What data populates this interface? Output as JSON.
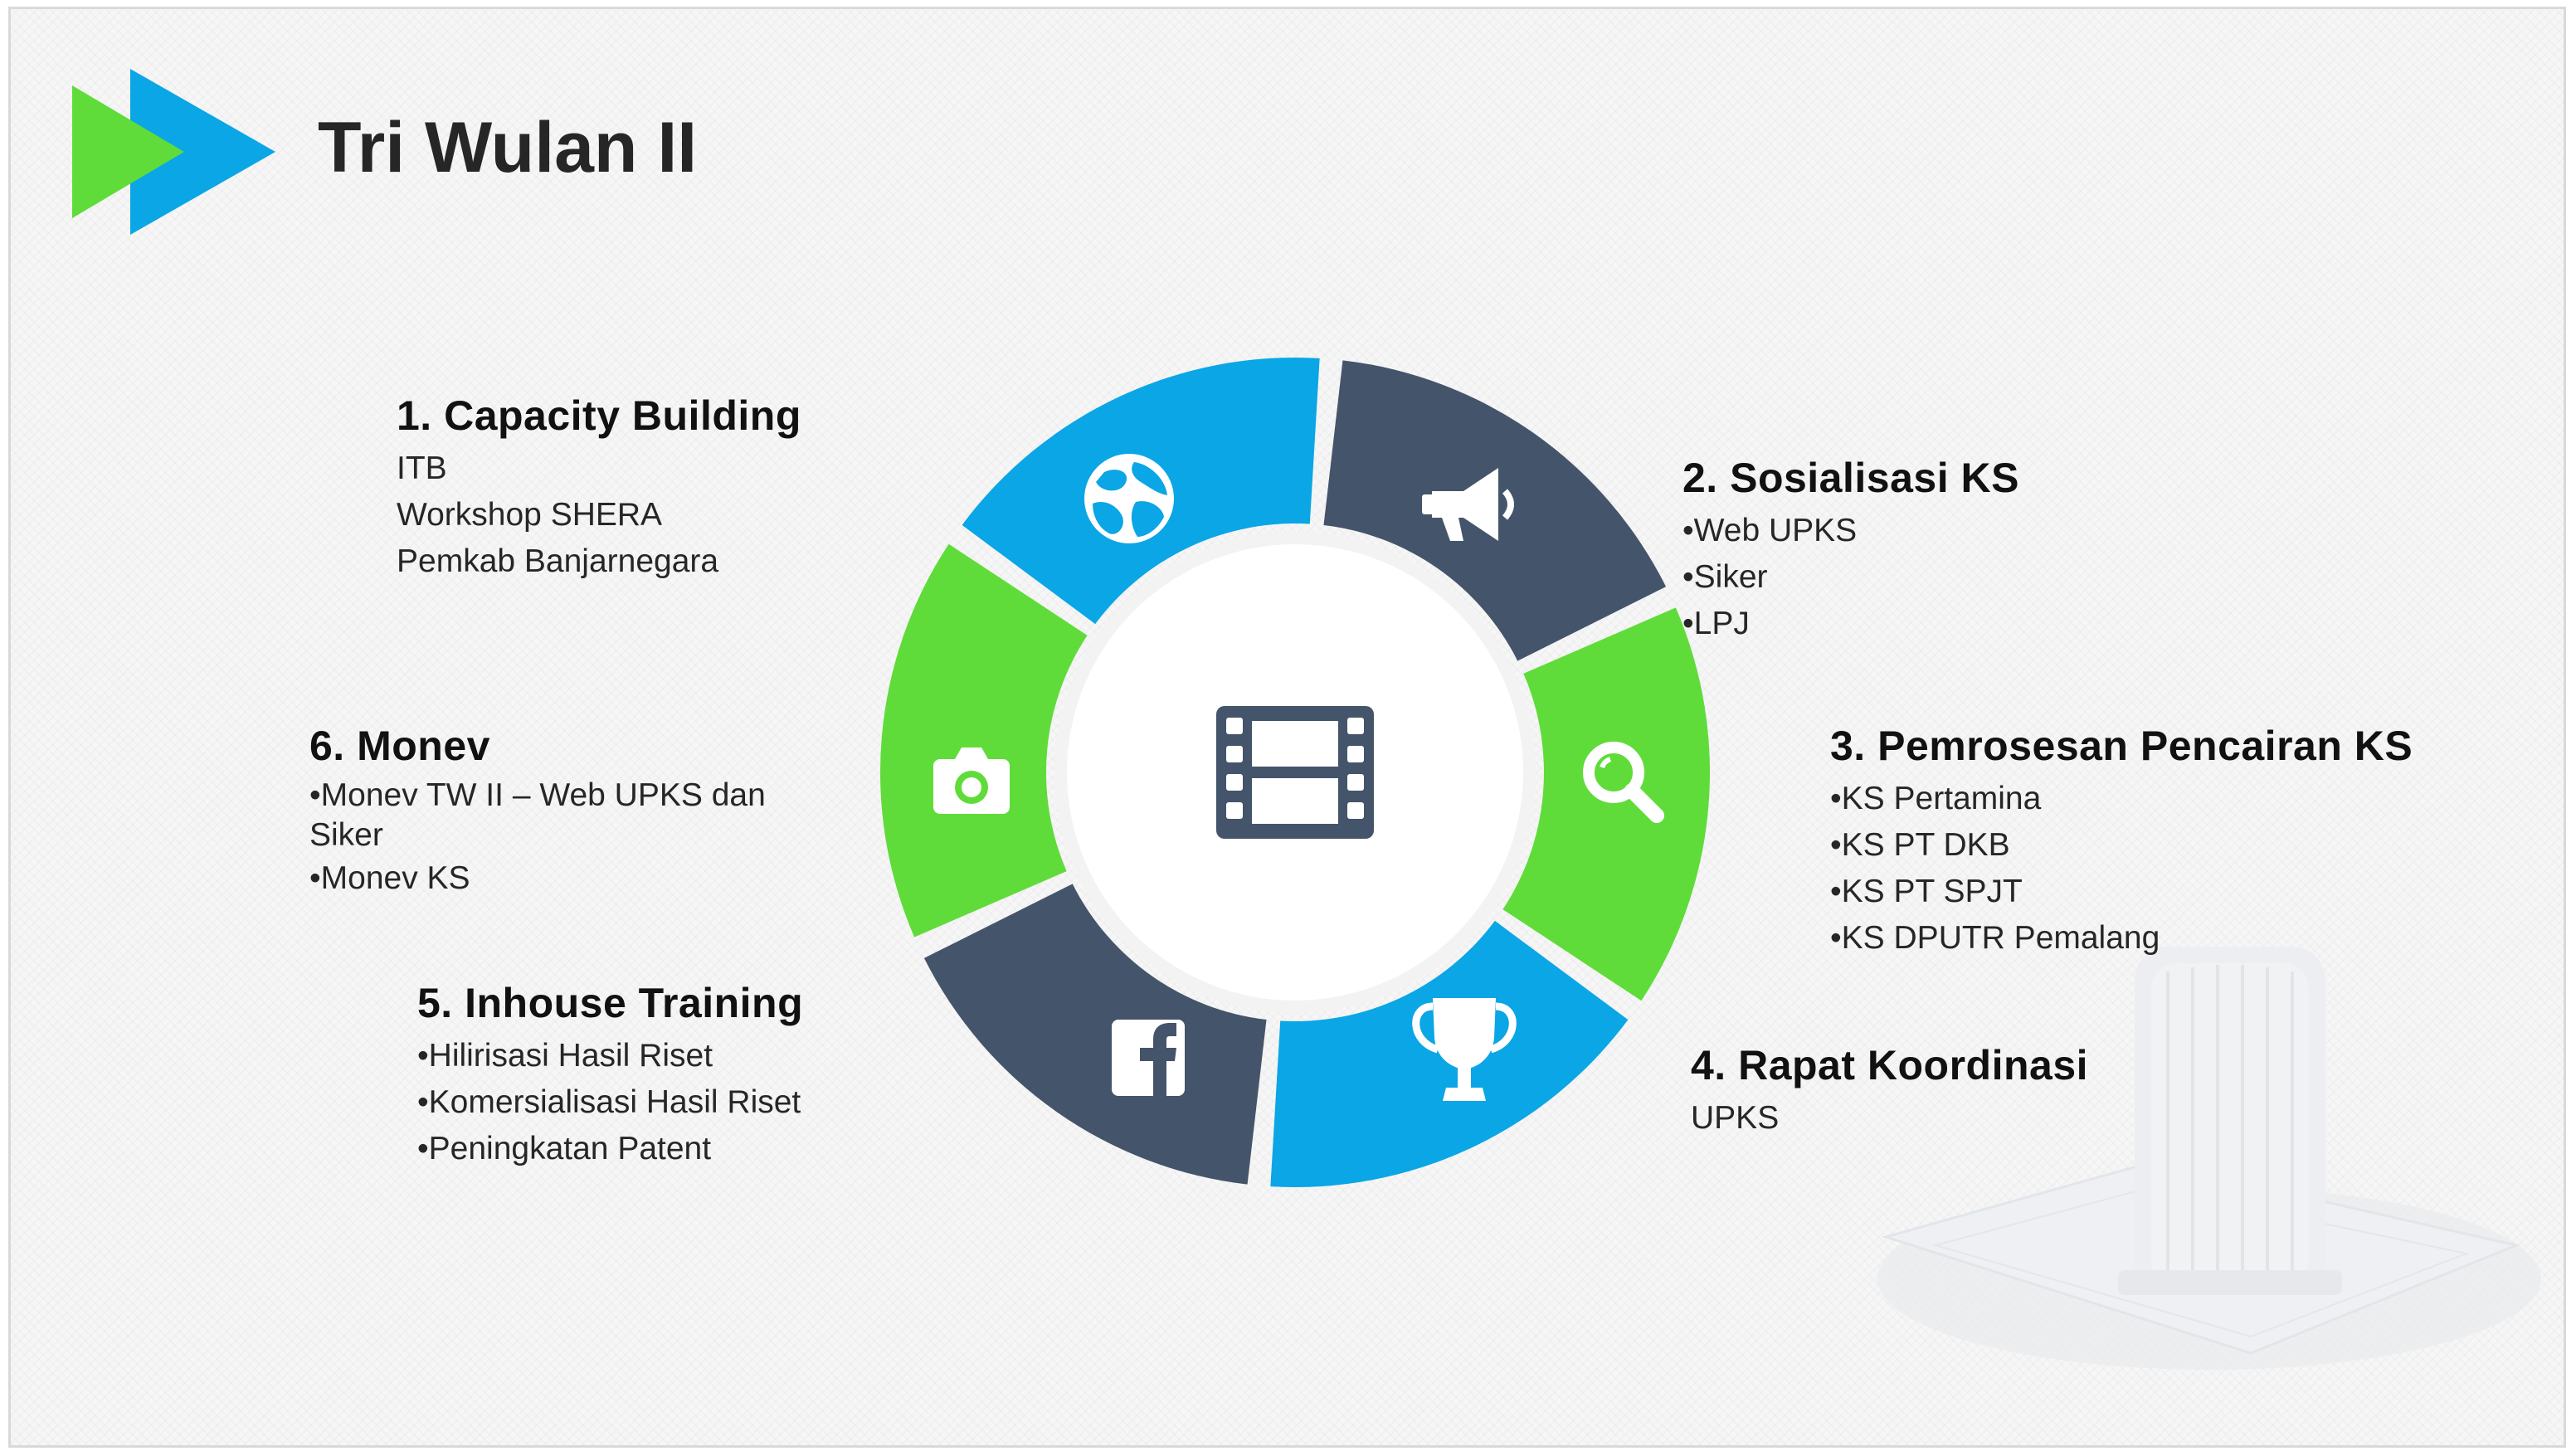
{
  "slide": {
    "title": "Tri Wulan II"
  },
  "colors": {
    "blue": "#0aa6e5",
    "green": "#5fdc39",
    "slate": "#44546a",
    "logo_blue": "#0aa6e5",
    "logo_green": "#5fdc39",
    "center_icon": "#44546a"
  },
  "wheel": {
    "center_icon": "film-icon",
    "segments": [
      {
        "order": 1,
        "color": "blue",
        "icon": "globe-icon"
      },
      {
        "order": 2,
        "color": "slate",
        "icon": "megaphone-icon"
      },
      {
        "order": 3,
        "color": "green",
        "icon": "search-icon"
      },
      {
        "order": 4,
        "color": "blue",
        "icon": "trophy-icon"
      },
      {
        "order": 5,
        "color": "slate",
        "icon": "facebook-icon"
      },
      {
        "order": 6,
        "color": "green",
        "icon": "camera-icon"
      }
    ]
  },
  "sections": [
    {
      "heading": "1. Capacity Building",
      "items": [
        "ITB",
        "Workshop SHERA",
        "Pemkab Banjarnegara"
      ]
    },
    {
      "heading": "2. Sosialisasi KS",
      "items": [
        "•Web UPKS",
        "•Siker",
        "•LPJ"
      ]
    },
    {
      "heading": "3.  Pemrosesan Pencairan KS",
      "items": [
        "•KS Pertamina",
        "•KS PT DKB",
        "•KS PT SPJT",
        "•KS DPUTR Pemalang"
      ]
    },
    {
      "heading": "4. Rapat Koordinasi",
      "items": [
        "UPKS"
      ]
    },
    {
      "heading": "5. Inhouse Training",
      "items": [
        "•Hilirisasi Hasil Riset",
        "•Komersialisasi Hasil Riset",
        "•Peningkatan Patent"
      ]
    },
    {
      "heading": "6. Monev",
      "items": [
        "•Monev TW II – Web UPKS dan Siker",
        "•Monev KS"
      ]
    }
  ]
}
